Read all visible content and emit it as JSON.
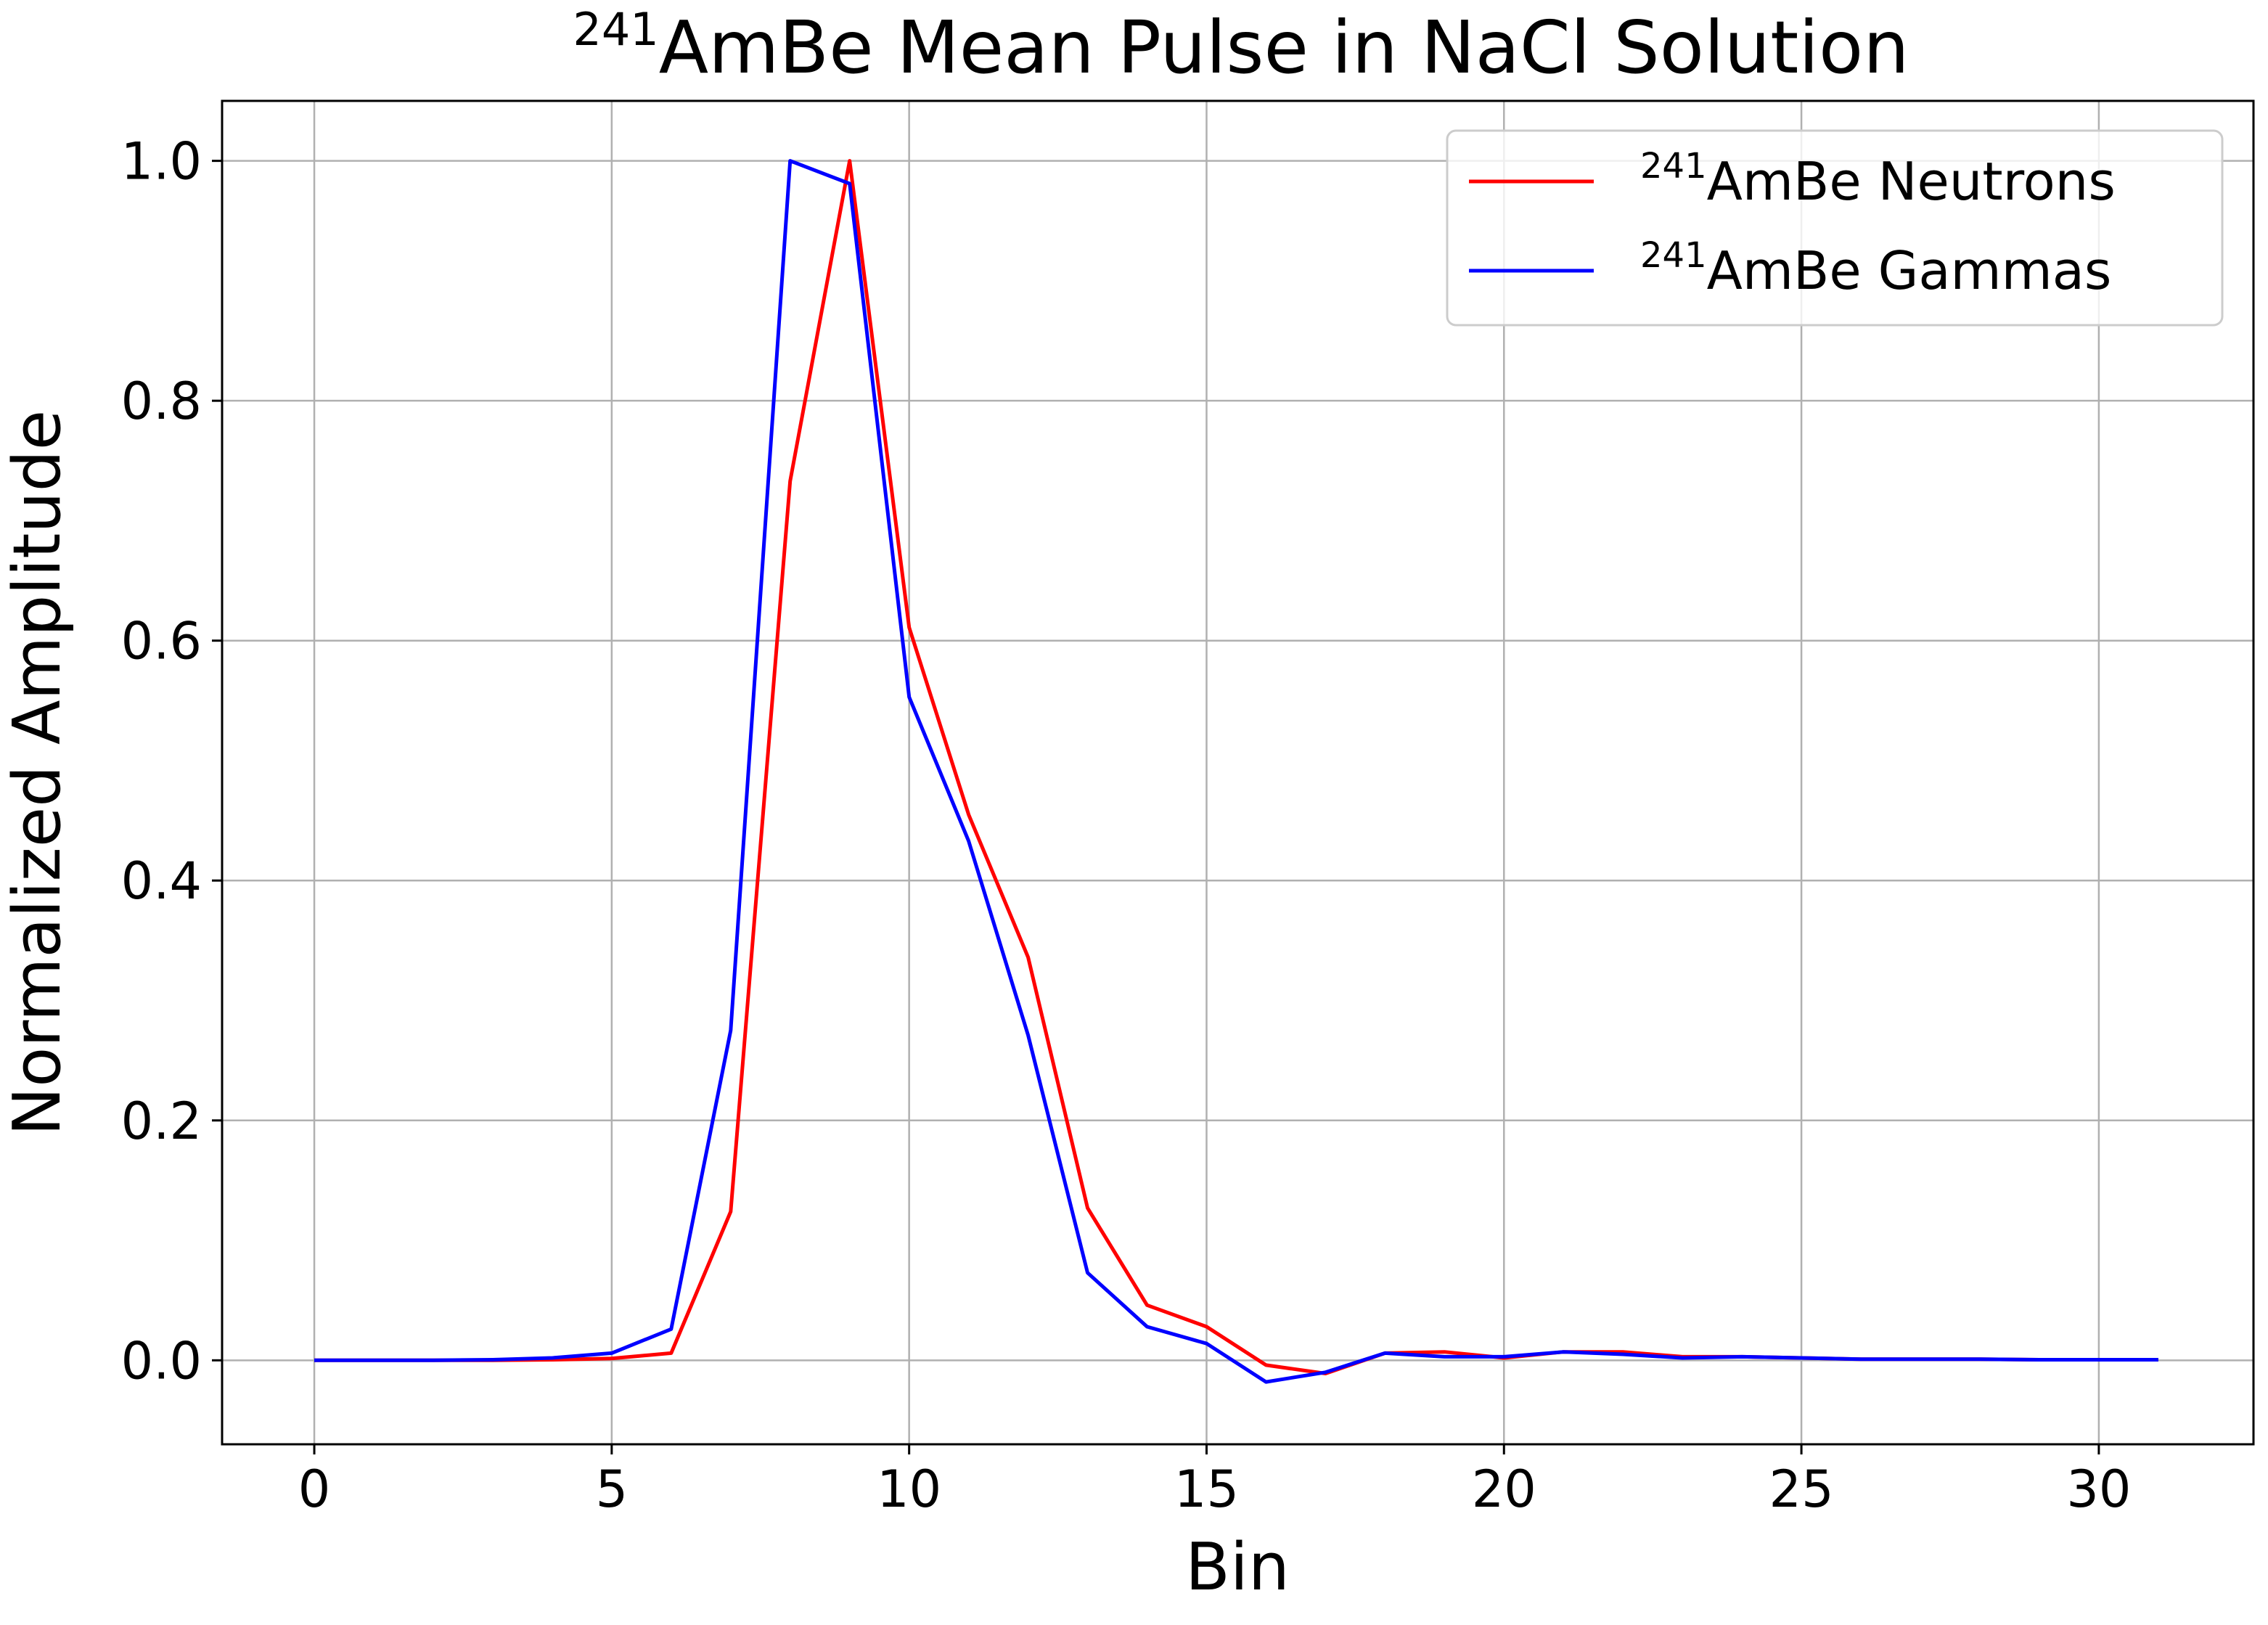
{
  "chart_data": {
    "type": "line",
    "title_sup": "241",
    "title_main": "AmBe Mean Pulse in NaCl Solution",
    "xlabel": "Bin",
    "ylabel": "Normalized Amplitude",
    "xlim": [
      -1.55,
      32.6
    ],
    "ylim": [
      -0.07,
      1.05
    ],
    "xticks": [
      0,
      5,
      10,
      15,
      20,
      25,
      30
    ],
    "xtick_labels": [
      "0",
      "5",
      "10",
      "15",
      "20",
      "25",
      "30"
    ],
    "yticks": [
      0.0,
      0.2,
      0.4,
      0.6,
      0.8,
      1.0
    ],
    "ytick_labels": [
      "0.0",
      "0.2",
      "0.4",
      "0.6",
      "0.8",
      "1.0"
    ],
    "grid": true,
    "legend_position": "top-right",
    "x": [
      0,
      1,
      2,
      3,
      4,
      5,
      6,
      7,
      8,
      9,
      10,
      11,
      12,
      13,
      14,
      15,
      16,
      17,
      18,
      19,
      20,
      21,
      22,
      23,
      24,
      25,
      26,
      27,
      28,
      29,
      30,
      31
    ],
    "series": [
      {
        "name_sup": "241",
        "name_main": "AmBe Neutrons",
        "color": "#ff0000",
        "values": [
          0.0,
          0.0,
          0.0,
          0.0,
          0.0005,
          0.0015,
          0.006,
          0.124,
          0.733,
          1.0,
          0.611,
          0.455,
          0.336,
          0.127,
          0.046,
          0.028,
          -0.004,
          -0.011,
          0.006,
          0.007,
          0.002,
          0.007,
          0.007,
          0.003,
          0.003,
          0.002,
          0.001,
          0.001,
          0.001,
          0.0005,
          0.0005,
          0.0005
        ]
      },
      {
        "name_sup": "241",
        "name_main": "AmBe Gammas",
        "color": "#0000ff",
        "values": [
          0.0,
          0.0,
          0.0,
          0.0005,
          0.002,
          0.006,
          0.026,
          0.275,
          1.0,
          0.981,
          0.553,
          0.433,
          0.271,
          0.073,
          0.028,
          0.014,
          -0.018,
          -0.01,
          0.006,
          0.003,
          0.003,
          0.007,
          0.005,
          0.002,
          0.003,
          0.002,
          0.001,
          0.001,
          0.001,
          0.0005,
          0.0005,
          0.0005
        ]
      }
    ]
  }
}
